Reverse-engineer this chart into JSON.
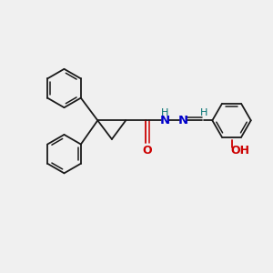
{
  "background_color": "#f0f0f0",
  "bond_color": "#1a1a1a",
  "n_color": "#0000cc",
  "o_color": "#cc0000",
  "teal_color": "#007070",
  "line_width": 1.3,
  "font_size": 8.5,
  "xlim": [
    0,
    10
  ],
  "ylim": [
    0,
    10
  ]
}
